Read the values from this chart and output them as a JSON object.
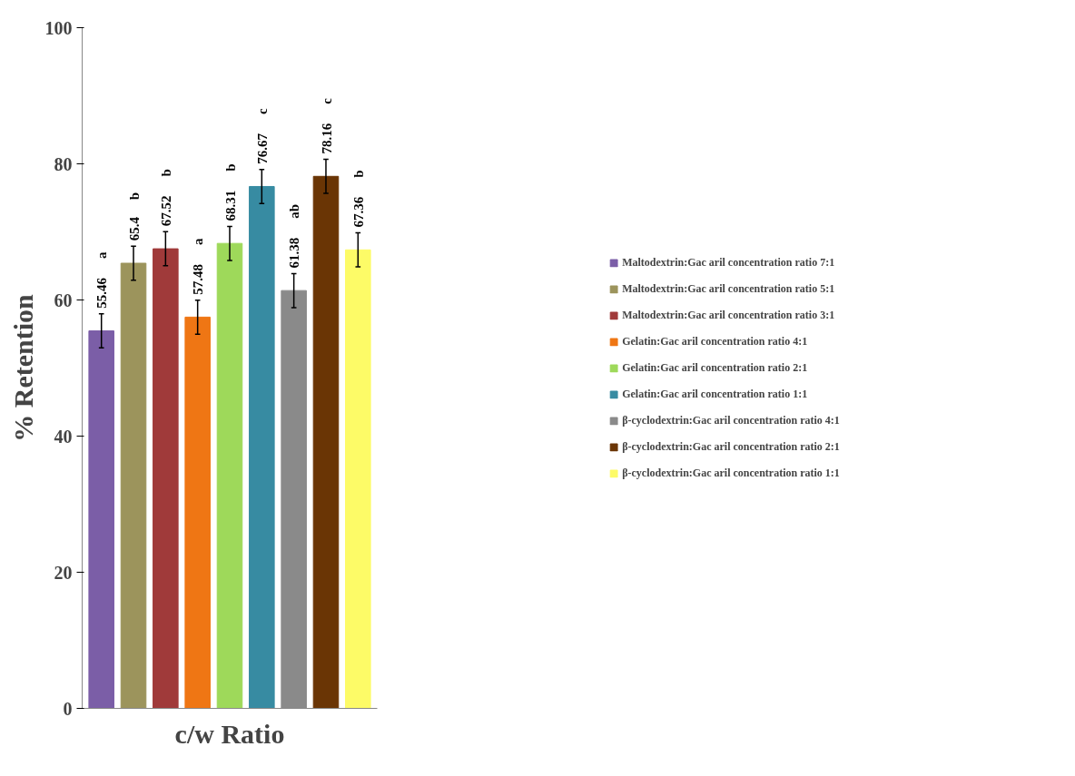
{
  "chart_data": {
    "type": "bar",
    "xlabel": "c/w Ratio",
    "ylabel": "% Retention",
    "categories": [
      null,
      null,
      null,
      null,
      null,
      null,
      null,
      null,
      null
    ],
    "series": [
      {
        "name": "Maltodextrin:Gac aril concentration ratio 7:1",
        "color": "#7b5ea7",
        "values": [
          55.46,
          null,
          null,
          null,
          null,
          null,
          null,
          null,
          null
        ],
        "errors": [
          2.5,
          null,
          null,
          null,
          null,
          null,
          null,
          null,
          null
        ]
      },
      {
        "name": "Maltodextrin:Gac aril concentration ratio 5:1",
        "color": "#9c945c",
        "values": [
          null,
          65.4,
          null,
          null,
          null,
          null,
          null,
          null,
          null
        ],
        "errors": [
          null,
          2.5,
          null,
          null,
          null,
          null,
          null,
          null,
          null
        ]
      },
      {
        "name": "Maltodextrin:Gac aril concentration ratio 3:1",
        "color": "#a03a3a",
        "values": [
          null,
          null,
          67.52,
          null,
          null,
          null,
          null,
          null,
          null
        ],
        "errors": [
          null,
          null,
          2.5,
          null,
          null,
          null,
          null,
          null,
          null
        ]
      },
      {
        "name": "Gelatin:Gac aril concentration ratio 4:1",
        "color": "#ef7614",
        "values": [
          null,
          null,
          null,
          57.48,
          null,
          null,
          null,
          null,
          null
        ],
        "errors": [
          null,
          null,
          null,
          2.5,
          null,
          null,
          null,
          null,
          null
        ]
      },
      {
        "name": "Gelatin:Gac aril concentration ratio 2:1",
        "color": "#9ed95a",
        "values": [
          null,
          null,
          null,
          null,
          68.31,
          null,
          null,
          null,
          null
        ],
        "errors": [
          null,
          null,
          null,
          null,
          2.5,
          null,
          null,
          null,
          null
        ]
      },
      {
        "name": "Gelatin:Gac aril concentration ratio 1:1",
        "color": "#378ba2",
        "values": [
          null,
          null,
          null,
          null,
          null,
          76.67,
          null,
          null,
          null
        ],
        "errors": [
          null,
          null,
          null,
          null,
          null,
          2.5,
          null,
          null,
          null
        ]
      },
      {
        "name": "β-cyclodextrin:Gac aril concentration ratio 4:1",
        "color": "#8a8a8a",
        "values": [
          null,
          null,
          null,
          null,
          null,
          null,
          61.38,
          null,
          null
        ],
        "errors": [
          null,
          null,
          null,
          null,
          null,
          null,
          2.5,
          null,
          null
        ]
      },
      {
        "name": "β-cyclodextrin:Gac aril concentration ratio 2:1",
        "color": "#6a3505",
        "values": [
          null,
          null,
          null,
          null,
          null,
          null,
          null,
          78.16,
          null
        ],
        "errors": [
          null,
          null,
          null,
          null,
          null,
          null,
          null,
          2.5,
          null
        ]
      },
      {
        "name": "β-cyclodextrin:Gac aril concentration ratio 1:1",
        "color": "#fdfb67",
        "values": [
          null,
          null,
          null,
          null,
          null,
          null,
          null,
          null,
          67.36
        ],
        "errors": [
          null,
          null,
          null,
          null,
          null,
          null,
          null,
          null,
          2.5
        ]
      }
    ],
    "annotations": [
      "a",
      "b",
      "b",
      "a",
      "b",
      "c",
      "ab",
      "c",
      "b"
    ],
    "ylim": [
      0,
      100
    ],
    "yticks": [
      0,
      20,
      40,
      60,
      80,
      100
    ],
    "data_labels": true,
    "grid": false,
    "legend": "right",
    "tick_labels": "y"
  }
}
